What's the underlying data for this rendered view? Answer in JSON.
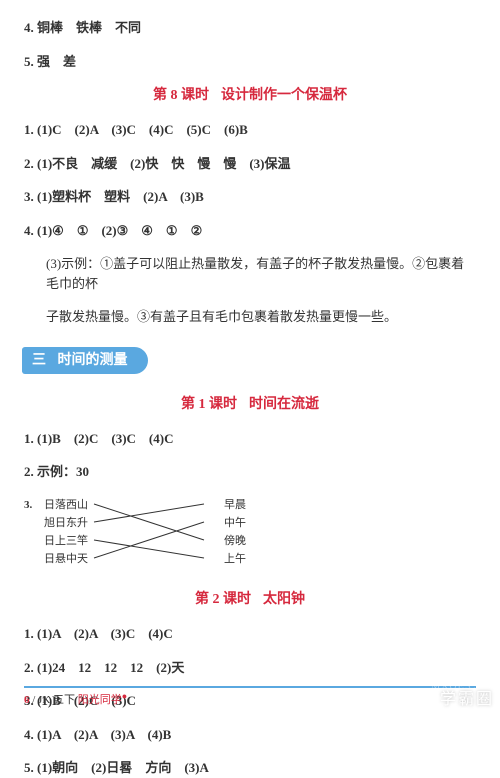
{
  "top": {
    "q4": "4. 铜棒　铁棒　不同",
    "q5": "5. 强　差"
  },
  "lesson8": {
    "title_a": "第 8 课时",
    "title_b": "设计制作一个保温杯",
    "q1": "1. (1)C　(2)A　(3)C　(4)C　(5)C　(6)B",
    "q2": "2. (1)不良　减缓　(2)快　快　慢　慢　(3)保温",
    "q3": "3. (1)塑料杯　塑料　(2)A　(3)B",
    "q4a": "4. (1)④　①　(2)③　④　①　②",
    "q4b": "(3)示例：①盖子可以阻止热量散发，有盖子的杯子散发热量慢。②包裹着毛巾的杯",
    "q4c": "子散发热量慢。③有盖子且有毛巾包裹着散发热量更慢一些。"
  },
  "section3": {
    "num": "三",
    "label": "时间的测量"
  },
  "lesson1": {
    "title_a": "第 1 课时",
    "title_b": "时间在流逝",
    "q1": "1. (1)B　(2)C　(3)C　(4)C",
    "q2": "2. 示例：30",
    "q3_label": "3.",
    "match": {
      "left": [
        "日落西山",
        "旭日东升",
        "日上三竿",
        "日悬中天"
      ],
      "right": [
        "早晨",
        "中午",
        "傍晚",
        "上午"
      ],
      "edges": [
        [
          0,
          2
        ],
        [
          1,
          0
        ],
        [
          2,
          3
        ],
        [
          3,
          1
        ]
      ],
      "line_color": "#333333",
      "text_color": "#333333",
      "fontsize": 11
    }
  },
  "lesson2": {
    "title_a": "第 2 课时",
    "title_b": "太阳钟",
    "q1": "1. (1)A　(2)A　(3)C　(4)C",
    "q2": "2. (1)24　12　12　12　(2)天",
    "q3": "3. (1)B　(2)C　(3)C",
    "q4": "4. (1)A　(2)A　(3)A　(4)B",
    "q5": "5. (1)朝向　(2)日晷　方向　(3)A"
  },
  "footer": {
    "pagenum": "6",
    "code": "/ JK 五下",
    "brand": "阳光同学"
  },
  "watermark": {
    "main": "学霸圈",
    "sub": "MXQE.COM"
  }
}
